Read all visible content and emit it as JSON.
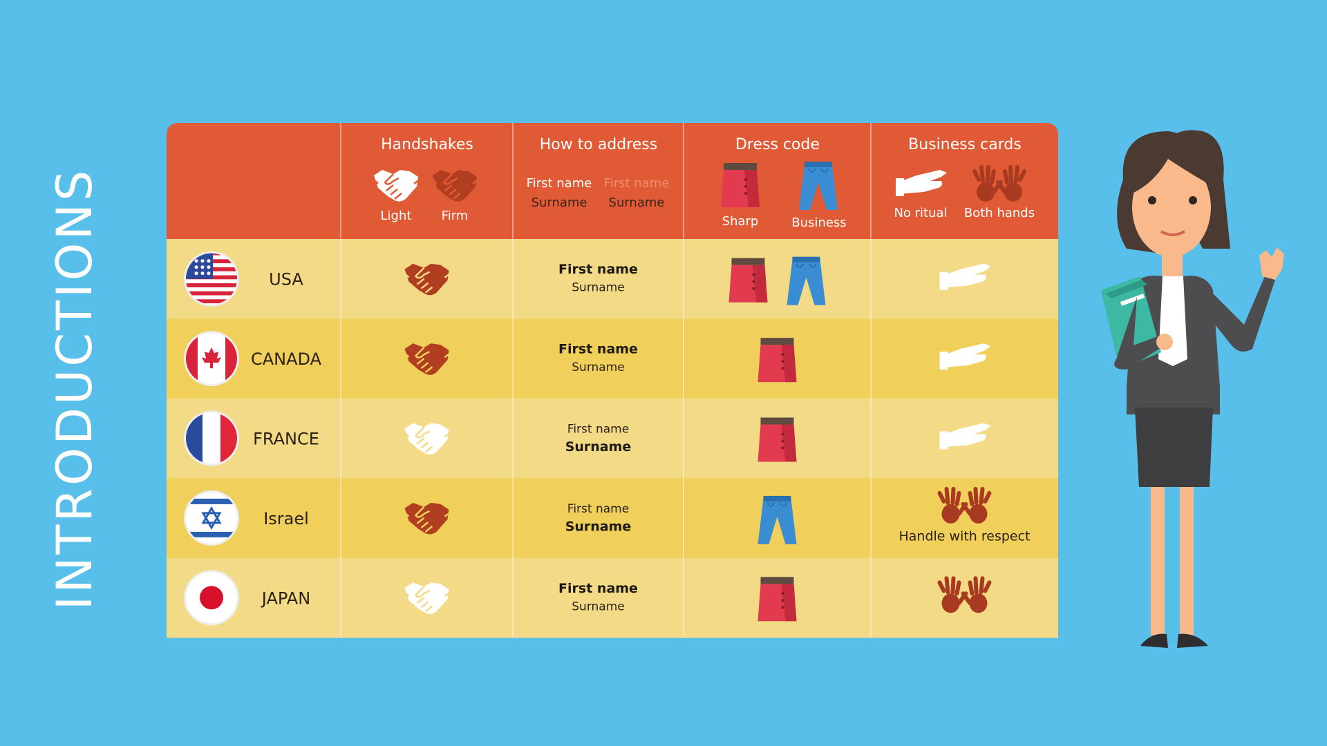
{
  "title": "INTRODUCTIONS",
  "header": {
    "handshakes": {
      "title": "Handshakes",
      "light": "Light",
      "firm": "Firm"
    },
    "address": {
      "title": "How to address",
      "option_1": {
        "first": "First name",
        "second": "Surname"
      },
      "option_2": {
        "first": "First name",
        "second": "Surname"
      }
    },
    "dress": {
      "title": "Dress code",
      "sharp": "Sharp",
      "business": "Business"
    },
    "cards": {
      "title": "Business cards",
      "no_ritual": "No ritual",
      "both_hands": "Both hands"
    }
  },
  "rows": [
    {
      "country": "USA",
      "handshake": "firm",
      "address": {
        "first": "First name",
        "second": "Surname",
        "emphasis": "first"
      },
      "dress": [
        "sharp",
        "business"
      ],
      "cards": "no_ritual"
    },
    {
      "country": "CANADA",
      "handshake": "firm",
      "address": {
        "first": "First name",
        "second": "Surname",
        "emphasis": "first"
      },
      "dress": [
        "sharp"
      ],
      "cards": "no_ritual"
    },
    {
      "country": "FRANCE",
      "handshake": "light",
      "address": {
        "first": "First name",
        "second": "Surname",
        "emphasis": "second"
      },
      "dress": [
        "sharp"
      ],
      "cards": "no_ritual"
    },
    {
      "country": "Israel",
      "handshake": "firm",
      "address": {
        "first": "First name",
        "second": "Surname",
        "emphasis": "second"
      },
      "dress": [
        "business"
      ],
      "cards": "both_hands",
      "cards_note": "Handle with respect"
    },
    {
      "country": "JAPAN",
      "handshake": "light",
      "address": {
        "first": "First name",
        "second": "Surname",
        "emphasis": "first"
      },
      "dress": [
        "sharp"
      ],
      "cards": "both_hands"
    }
  ]
}
